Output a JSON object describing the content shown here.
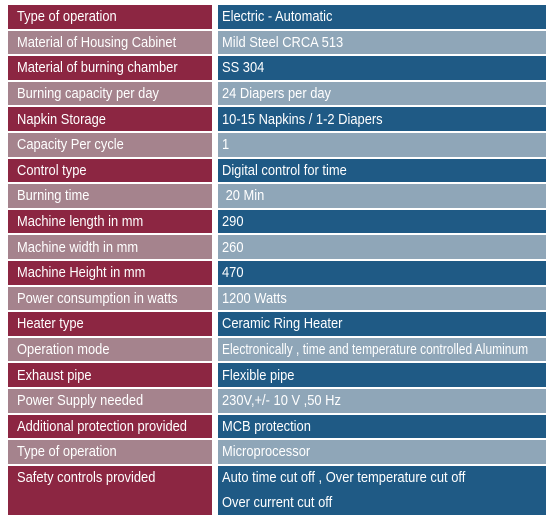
{
  "rows": [
    {
      "label": "Type of operation",
      "value": "Electric - Automatic"
    },
    {
      "label": "Material of Housing Cabinet",
      "value": "Mild Steel CRCA 513"
    },
    {
      "label": "Material of burning chamber",
      "value": "SS 304"
    },
    {
      "label": "Burning capacity per day",
      "value": "24 Diapers per day"
    },
    {
      "label": "Napkin Storage",
      "value": "10-15 Napkins / 1-2 Diapers"
    },
    {
      "label": "Capacity Per cycle",
      "value": "1"
    },
    {
      "label": "Control type",
      "value": "Digital control for time"
    },
    {
      "label": "Burning time",
      "value": " 20 Min"
    },
    {
      "label": "Machine length in mm",
      "value": "290"
    },
    {
      "label": "Machine width in mm",
      "value": "260"
    },
    {
      "label": "Machine Height in mm",
      "value": "470"
    },
    {
      "label": "Power consumption in watts",
      "value": "1200 Watts"
    },
    {
      "label": "Heater type",
      "value": "Ceramic Ring Heater"
    },
    {
      "label": "Operation mode",
      "value": "Electronically , time and temperature controlled Aluminum"
    },
    {
      "label": "Exhaust pipe",
      "value": "Flexible pipe"
    },
    {
      "label": "Power Supply needed",
      "value": "230V,+/- 10 V ,50 Hz"
    },
    {
      "label": "Additional protection provided",
      "value": "MCB protection"
    },
    {
      "label": "Type of operation",
      "value": "Microprocessor"
    },
    {
      "label": "Safety controls provided",
      "value": "Auto time cut off , Over temperature cut off",
      "value2": "Over current cut off"
    }
  ],
  "colors": {
    "label_dark": "#8c2642",
    "value_dark": "#1f5a85",
    "label_light": "#a5838d",
    "value_light": "#8fa6b8",
    "text": "#ffffff"
  }
}
